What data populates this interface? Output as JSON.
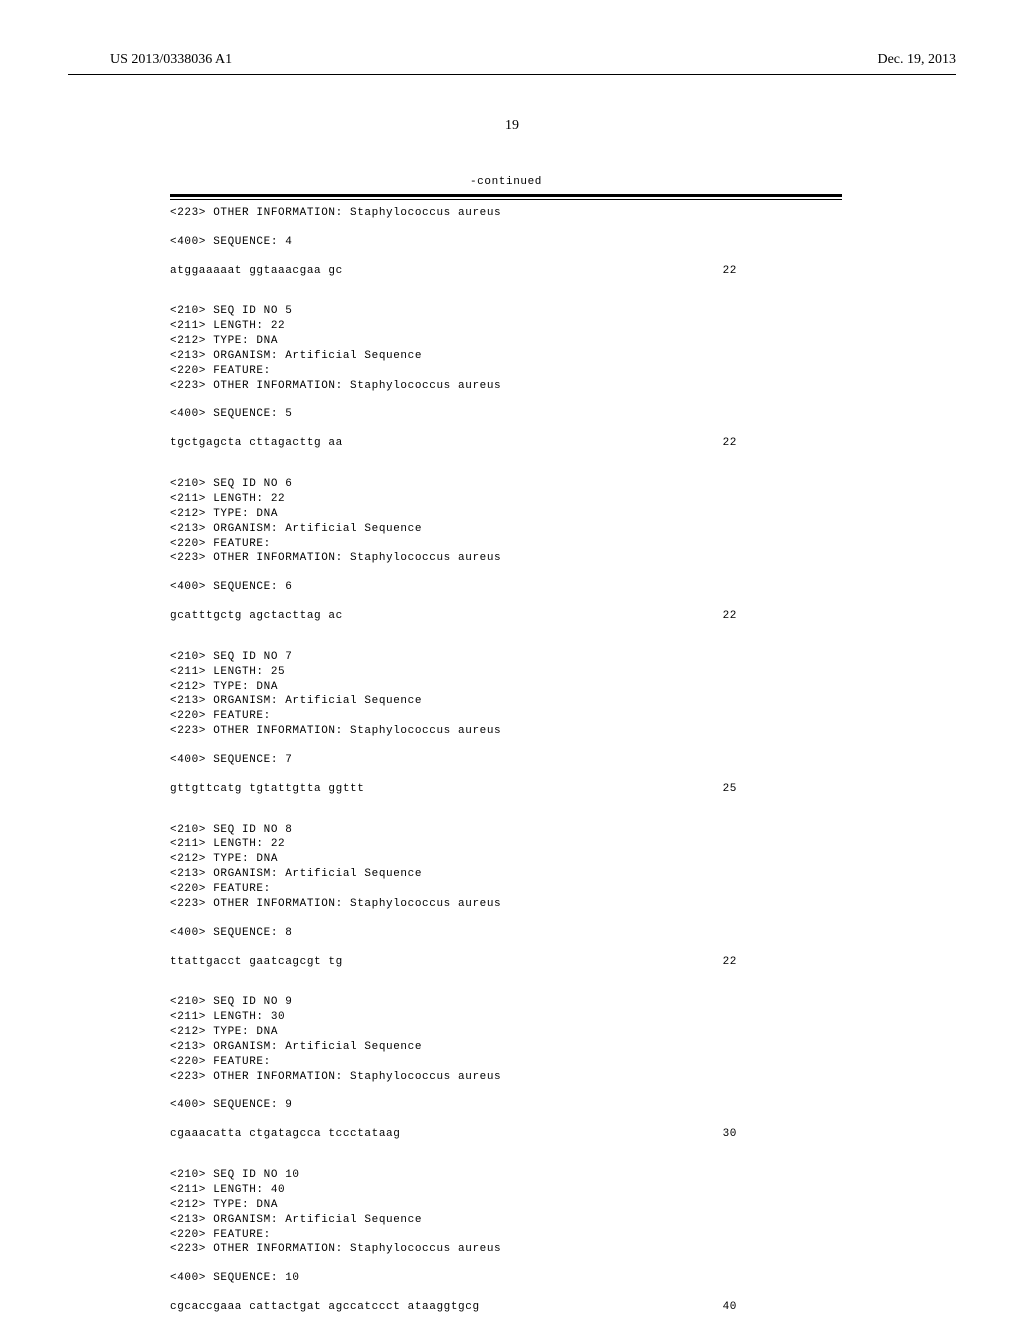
{
  "header": {
    "publication_number": "US 2013/0338036 A1",
    "date": "Dec. 19, 2013"
  },
  "page_number": "19",
  "continued_label": "-continued",
  "sequences": [
    {
      "pre_lines": [
        "<223> OTHER INFORMATION: Staphylococcus aureus"
      ],
      "seq_label": "<400> SEQUENCE: 4",
      "seq_data": "atggaaaaat ggtaaacgaa gc",
      "seq_len": "22"
    },
    {
      "pre_lines": [
        "<210> SEQ ID NO 5",
        "<211> LENGTH: 22",
        "<212> TYPE: DNA",
        "<213> ORGANISM: Artificial Sequence",
        "<220> FEATURE:",
        "<223> OTHER INFORMATION: Staphylococcus aureus"
      ],
      "seq_label": "<400> SEQUENCE: 5",
      "seq_data": "tgctgagcta cttagacttg aa",
      "seq_len": "22"
    },
    {
      "pre_lines": [
        "<210> SEQ ID NO 6",
        "<211> LENGTH: 22",
        "<212> TYPE: DNA",
        "<213> ORGANISM: Artificial Sequence",
        "<220> FEATURE:",
        "<223> OTHER INFORMATION: Staphylococcus aureus"
      ],
      "seq_label": "<400> SEQUENCE: 6",
      "seq_data": "gcatttgctg agctacttag ac",
      "seq_len": "22"
    },
    {
      "pre_lines": [
        "<210> SEQ ID NO 7",
        "<211> LENGTH: 25",
        "<212> TYPE: DNA",
        "<213> ORGANISM: Artificial Sequence",
        "<220> FEATURE:",
        "<223> OTHER INFORMATION: Staphylococcus aureus"
      ],
      "seq_label": "<400> SEQUENCE: 7",
      "seq_data": "gttgttcatg tgtattgtta ggttt",
      "seq_len": "25"
    },
    {
      "pre_lines": [
        "<210> SEQ ID NO 8",
        "<211> LENGTH: 22",
        "<212> TYPE: DNA",
        "<213> ORGANISM: Artificial Sequence",
        "<220> FEATURE:",
        "<223> OTHER INFORMATION: Staphylococcus aureus"
      ],
      "seq_label": "<400> SEQUENCE: 8",
      "seq_data": "ttattgacct gaatcagcgt tg",
      "seq_len": "22"
    },
    {
      "pre_lines": [
        "<210> SEQ ID NO 9",
        "<211> LENGTH: 30",
        "<212> TYPE: DNA",
        "<213> ORGANISM: Artificial Sequence",
        "<220> FEATURE:",
        "<223> OTHER INFORMATION: Staphylococcus aureus"
      ],
      "seq_label": "<400> SEQUENCE: 9",
      "seq_data": "cgaaacatta ctgatagcca tccctataag",
      "seq_len": "30"
    },
    {
      "pre_lines": [
        "<210> SEQ ID NO 10",
        "<211> LENGTH: 40",
        "<212> TYPE: DNA",
        "<213> ORGANISM: Artificial Sequence",
        "<220> FEATURE:",
        "<223> OTHER INFORMATION: Staphylococcus aureus"
      ],
      "seq_label": "<400> SEQUENCE: 10",
      "seq_data": "cgcaccgaaa cattactgat agccatccct ataaggtgcg",
      "seq_len": "40"
    }
  ]
}
